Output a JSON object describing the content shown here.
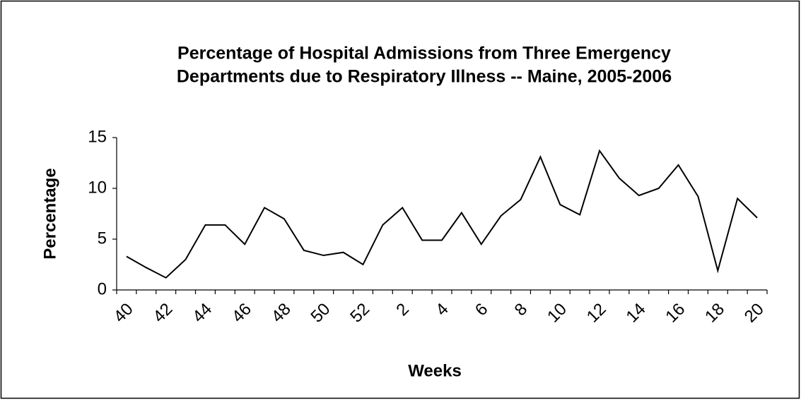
{
  "chart_data": {
    "type": "line",
    "title": [
      "Percentage of Hospital Admissions from Three Emergency",
      "Departments due to Respiratory Illness  -- Maine, 2005-2006"
    ],
    "x_label": "Weeks",
    "y_label": "Percentage",
    "categories": [
      "40",
      null,
      "42",
      null,
      "44",
      null,
      "46",
      null,
      "48",
      null,
      "50",
      null,
      "52",
      null,
      "2",
      null,
      "4",
      null,
      "6",
      null,
      "8",
      null,
      "10",
      null,
      "12",
      null,
      "14",
      null,
      "16",
      null,
      "18",
      null,
      "20"
    ],
    "series": [
      {
        "name": "Percentage",
        "color": "#000000",
        "values": [
          3.3,
          2.2,
          1.2,
          3.0,
          6.4,
          6.4,
          4.5,
          8.1,
          7.0,
          3.9,
          3.4,
          3.7,
          2.5,
          6.4,
          8.1,
          4.9,
          4.9,
          7.6,
          4.5,
          7.3,
          8.9,
          13.1,
          8.4,
          7.4,
          13.7,
          11.0,
          9.3,
          10.0,
          12.3,
          9.2,
          1.9,
          9.0,
          7.1
        ]
      }
    ],
    "ylim": [
      0,
      15
    ],
    "yticks": [
      0,
      5,
      10,
      15
    ],
    "grid": false
  }
}
